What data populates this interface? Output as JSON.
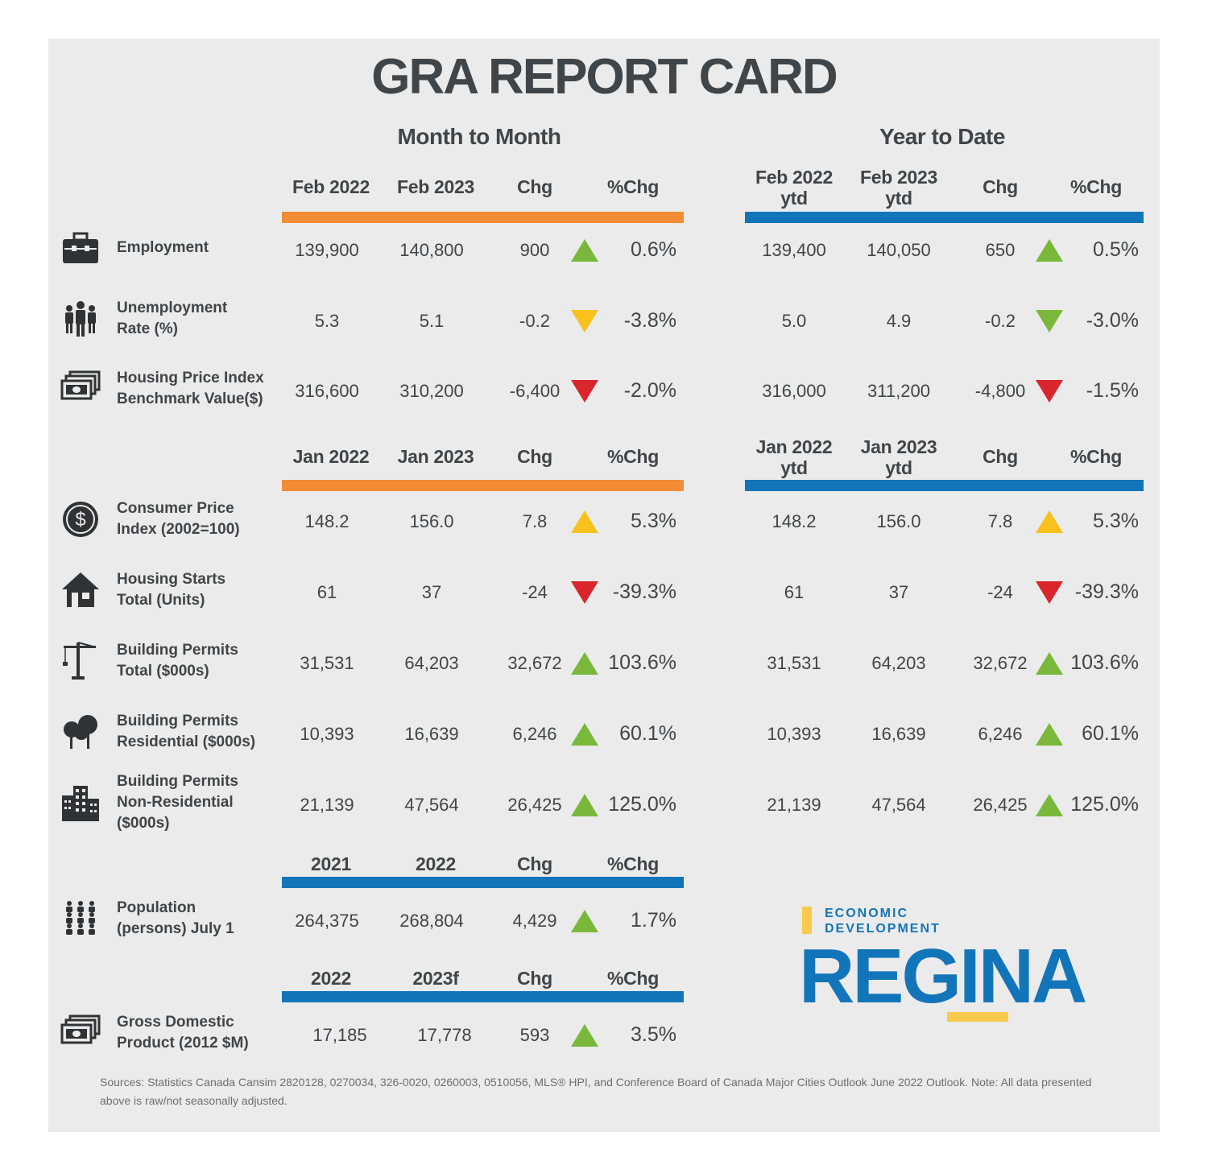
{
  "title": "GRA REPORT CARD",
  "sections": {
    "month": "Month to Month",
    "ytd": "Year to Date"
  },
  "headers": {
    "feb": {
      "m": [
        "Feb 2022",
        "Feb 2023",
        "Chg",
        "%Chg"
      ],
      "y": [
        "Feb 2022\nytd",
        "Feb 2023\nytd",
        "Chg",
        "%Chg"
      ]
    },
    "jan": {
      "m": [
        "Jan 2022",
        "Jan 2023",
        "Chg",
        "%Chg"
      ],
      "y": [
        "Jan 2022\nytd",
        "Jan 2023\nytd",
        "Chg",
        "%Chg"
      ]
    },
    "pop": [
      "2021",
      "2022",
      "Chg",
      "%Chg"
    ],
    "gdp": [
      "2022",
      "2023f",
      "Chg",
      "%Chg"
    ]
  },
  "colors": {
    "up": "#7ab83c",
    "down_red": "#d9252b",
    "down_yellow": "#f8c11c",
    "up_yellow": "#f8c11c",
    "orange": "#f28c35",
    "blue": "#1375b9",
    "logo_yellow": "#f8c94b"
  },
  "rows": [
    {
      "icon": "briefcase-icon",
      "label": "Employment",
      "m": [
        "139,900",
        "140,800",
        "900",
        "0.6%"
      ],
      "m_trend": "up-green",
      "y": [
        "139,400",
        "140,050",
        "650",
        "0.5%"
      ],
      "y_trend": "up-green"
    },
    {
      "icon": "people-icon",
      "label": "Unemployment\nRate (%)",
      "m": [
        "5.3",
        "5.1",
        "-0.2",
        "-3.8%"
      ],
      "m_trend": "down-yellow",
      "y": [
        "5.0",
        "4.9",
        "-0.2",
        "-3.0%"
      ],
      "y_trend": "down-green"
    },
    {
      "icon": "money-icon",
      "label": "Housing Price Index\nBenchmark Value($)",
      "m": [
        "316,600",
        "310,200",
        "-6,400",
        "-2.0%"
      ],
      "m_trend": "down-red",
      "y": [
        "316,000",
        "311,200",
        "-4,800",
        "-1.5%"
      ],
      "y_trend": "down-red"
    },
    {
      "icon": "dollar-coin-icon",
      "label": "Consumer Price\nIndex (2002=100)",
      "m": [
        "148.2",
        "156.0",
        "7.8",
        "5.3%"
      ],
      "m_trend": "up-yellow",
      "y": [
        "148.2",
        "156.0",
        "7.8",
        "5.3%"
      ],
      "y_trend": "up-yellow"
    },
    {
      "icon": "house-icon",
      "label": "Housing Starts\nTotal (Units)",
      "m": [
        "61",
        "37",
        "-24",
        "-39.3%"
      ],
      "m_trend": "down-red",
      "y": [
        "61",
        "37",
        "-24",
        "-39.3%"
      ],
      "y_trend": "down-red"
    },
    {
      "icon": "crane-icon",
      "label": "Building Permits\nTotal ($000s)",
      "m": [
        "31,531",
        "64,203",
        "32,672",
        "103.6%"
      ],
      "m_trend": "up-green",
      "y": [
        "31,531",
        "64,203",
        "32,672",
        "103.6%"
      ],
      "y_trend": "up-green"
    },
    {
      "icon": "trees-icon",
      "label": "Building Permits\nResidential ($000s)",
      "m": [
        "10,393",
        "16,639",
        "6,246",
        "60.1%"
      ],
      "m_trend": "up-green",
      "y": [
        "10,393",
        "16,639",
        "6,246",
        "60.1%"
      ],
      "y_trend": "up-green"
    },
    {
      "icon": "buildings-icon",
      "label": "Building Permits\nNon-Residential\n($000s)",
      "m": [
        "21,139",
        "47,564",
        "26,425",
        "125.0%"
      ],
      "m_trend": "up-green",
      "y": [
        "21,139",
        "47,564",
        "26,425",
        "125.0%"
      ],
      "y_trend": "up-green"
    },
    {
      "icon": "population-icon",
      "label": "Population\n(persons) July 1",
      "m": [
        "264,375",
        "268,804",
        "4,429",
        "1.7%"
      ],
      "m_trend": "up-green"
    },
    {
      "icon": "money-icon",
      "label": "Gross Domestic\nProduct (2012 $M)",
      "m": [
        "17,185",
        "17,778",
        "593",
        "3.5%"
      ],
      "m_trend": "up-green"
    }
  ],
  "logo": {
    "line1": "ECONOMIC",
    "line2": "DEVELOPMENT",
    "name": "REGINA"
  },
  "sources": "Sources: Statistics Canada Cansim 2820128, 0270034, 326-0020, 0260003, 0510056, MLS® HPI, and Conference Board of Canada Major Cities Outlook June 2022 Outlook. Note: All data presented above is raw/not seasonally adjusted."
}
